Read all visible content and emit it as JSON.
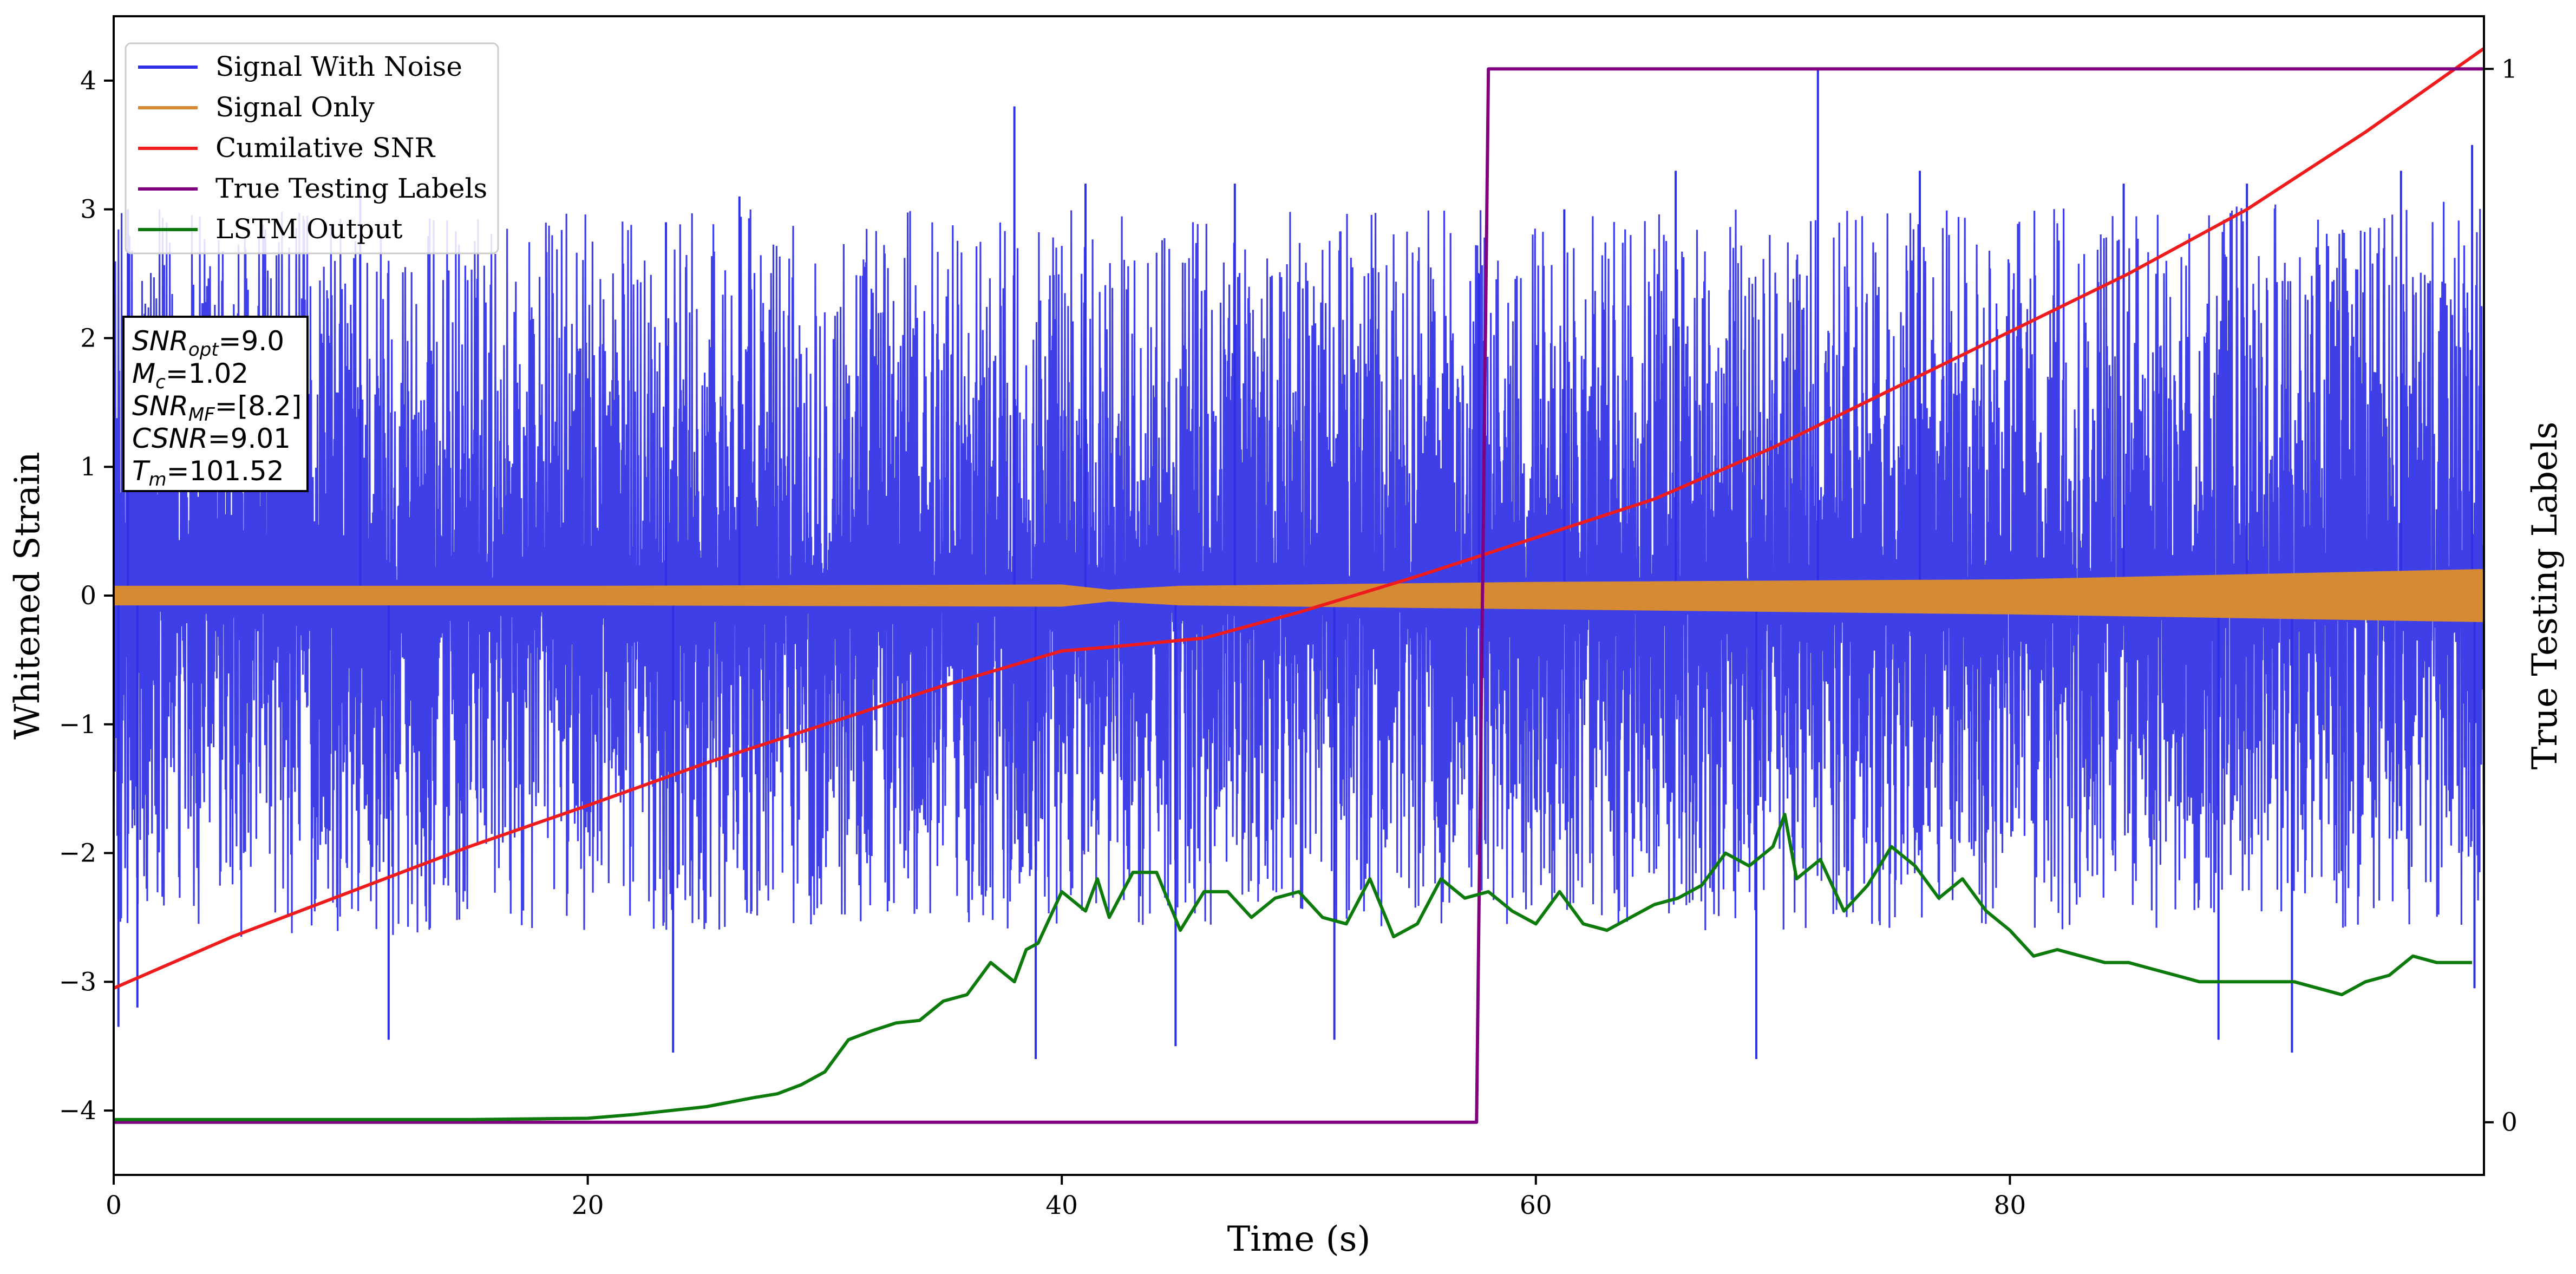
{
  "chart_data": {
    "type": "line",
    "xlabel": "Time (s)",
    "ylabel": "Whitened Strain",
    "ylabel_right": "True Testing Labels",
    "xlim": [
      0,
      100
    ],
    "ylim": [
      -4.5,
      4.5
    ],
    "ylim_right": [
      -0.05,
      1.05
    ],
    "x_ticks": [
      0,
      20,
      40,
      60,
      80
    ],
    "y_ticks": [
      -4,
      -3,
      -2,
      -1,
      0,
      1,
      2,
      3,
      4
    ],
    "y_ticks_right": [
      0,
      1
    ],
    "legend_position": "top-left",
    "annotation": [
      {
        "sym": "SNR",
        "sub": "opt",
        "value": "=9.0"
      },
      {
        "sym": "M",
        "sub": "c",
        "value": "=1.02"
      },
      {
        "sym": "SNR",
        "sub": "MF",
        "value": "=[8.2]"
      },
      {
        "sym": "CSNR",
        "sub": "",
        "value": "=9.01"
      },
      {
        "sym": "T",
        "sub": "m",
        "value": "=101.52"
      }
    ],
    "series": [
      {
        "name": "Signal With Noise",
        "color": "#2f2fe6",
        "axis": "left",
        "style": "dense-noise",
        "band_top": [
          [
            0,
            3.0
          ],
          [
            20,
            3.0
          ],
          [
            40,
            3.0
          ],
          [
            60,
            3.0
          ],
          [
            80,
            3.0
          ],
          [
            100,
            3.1
          ]
        ],
        "band_bottom": [
          [
            0,
            -2.7
          ],
          [
            20,
            -2.6
          ],
          [
            40,
            -2.6
          ],
          [
            60,
            -2.6
          ],
          [
            80,
            -2.6
          ],
          [
            100,
            -2.6
          ]
        ],
        "peaks_top": [
          [
            0.6,
            3.0
          ],
          [
            10.4,
            3.2
          ],
          [
            23.3,
            2.9
          ],
          [
            26.4,
            3.1
          ],
          [
            38.0,
            3.8
          ],
          [
            41.0,
            3.2
          ],
          [
            47.3,
            3.2
          ],
          [
            57.6,
            2.5
          ],
          [
            61.2,
            3.0
          ],
          [
            65.9,
            3.3
          ],
          [
            71.9,
            4.1
          ],
          [
            76.2,
            3.3
          ],
          [
            84.8,
            3.2
          ],
          [
            90.0,
            3.2
          ],
          [
            96.5,
            3.3
          ],
          [
            99.5,
            3.5
          ]
        ],
        "peaks_bottom": [
          [
            0.2,
            -3.35
          ],
          [
            1.0,
            -3.2
          ],
          [
            11.6,
            -3.45
          ],
          [
            23.6,
            -3.55
          ],
          [
            38.9,
            -3.6
          ],
          [
            44.8,
            -3.5
          ],
          [
            51.5,
            -3.45
          ],
          [
            69.3,
            -3.6
          ],
          [
            88.8,
            -3.45
          ],
          [
            91.9,
            -3.55
          ],
          [
            99.6,
            -3.05
          ]
        ]
      },
      {
        "name": "Signal Only",
        "color": "#d68a33",
        "axis": "left",
        "style": "band",
        "upper": [
          [
            0,
            0.07
          ],
          [
            20,
            0.07
          ],
          [
            40,
            0.08
          ],
          [
            42,
            0.04
          ],
          [
            45,
            0.07
          ],
          [
            60,
            0.1
          ],
          [
            80,
            0.12
          ],
          [
            100,
            0.2
          ]
        ],
        "lower": [
          [
            0,
            -0.07
          ],
          [
            20,
            -0.07
          ],
          [
            40,
            -0.08
          ],
          [
            42,
            -0.04
          ],
          [
            45,
            -0.07
          ],
          [
            60,
            -0.1
          ],
          [
            80,
            -0.14
          ],
          [
            100,
            -0.2
          ]
        ]
      },
      {
        "name": "Cumilative SNR",
        "color": "#ee1c1c",
        "axis": "left",
        "x": [
          0,
          5,
          10,
          15,
          20,
          25,
          30,
          35,
          40,
          42,
          46,
          50,
          55,
          60,
          65,
          70,
          75,
          80,
          85,
          90,
          95,
          100
        ],
        "y": [
          -3.05,
          -2.65,
          -2.3,
          -1.95,
          -1.63,
          -1.3,
          -1.0,
          -0.7,
          -0.43,
          -0.4,
          -0.33,
          -0.13,
          0.15,
          0.45,
          0.75,
          1.15,
          1.6,
          2.05,
          2.5,
          3.0,
          3.6,
          4.25
        ]
      },
      {
        "name": "True Testing Labels",
        "color": "#800080",
        "axis": "right",
        "x": [
          0,
          57.5,
          58.0,
          100
        ],
        "y": [
          0,
          0,
          1,
          1
        ]
      },
      {
        "name": "LSTM Output",
        "color": "#0c7b0c",
        "axis": "left",
        "x": [
          0,
          10,
          15,
          20,
          22,
          25,
          27,
          28,
          29,
          30,
          31,
          32,
          33,
          34,
          35,
          36,
          37,
          38,
          38.5,
          39,
          40,
          41,
          41.5,
          42,
          43,
          44,
          45,
          46,
          47,
          48,
          49,
          50,
          51,
          52,
          53,
          54,
          55,
          56,
          57,
          58,
          59,
          60,
          61,
          62,
          63,
          64,
          65,
          66,
          67,
          68,
          69,
          70,
          70.5,
          71,
          72,
          73,
          74,
          75,
          76,
          77,
          78,
          79,
          80,
          81,
          82,
          83,
          84,
          85,
          86,
          87,
          88,
          89,
          90,
          91,
          92,
          93,
          94,
          95,
          96,
          97,
          98,
          99,
          99.5
        ],
        "y": [
          -4.07,
          -4.07,
          -4.07,
          -4.06,
          -4.03,
          -3.97,
          -3.9,
          -3.87,
          -3.8,
          -3.7,
          -3.45,
          -3.38,
          -3.32,
          -3.3,
          -3.15,
          -3.1,
          -2.85,
          -3.0,
          -2.75,
          -2.7,
          -2.3,
          -2.45,
          -2.2,
          -2.5,
          -2.15,
          -2.15,
          -2.6,
          -2.3,
          -2.3,
          -2.5,
          -2.35,
          -2.3,
          -2.5,
          -2.55,
          -2.2,
          -2.65,
          -2.55,
          -2.2,
          -2.35,
          -2.3,
          -2.45,
          -2.55,
          -2.3,
          -2.55,
          -2.6,
          -2.5,
          -2.4,
          -2.35,
          -2.25,
          -2.0,
          -2.1,
          -1.95,
          -1.7,
          -2.2,
          -2.05,
          -2.45,
          -2.25,
          -1.95,
          -2.1,
          -2.35,
          -2.2,
          -2.45,
          -2.6,
          -2.8,
          -2.75,
          -2.8,
          -2.85,
          -2.85,
          -2.9,
          -2.95,
          -3.0,
          -3.0,
          -3.0,
          -3.0,
          -3.0,
          -3.05,
          -3.1,
          -3.0,
          -2.95,
          -2.8,
          -2.85,
          -2.85,
          -2.85
        ]
      }
    ]
  }
}
